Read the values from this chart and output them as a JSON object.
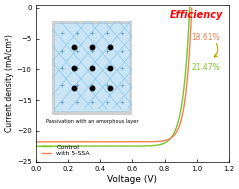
{
  "title": "Efficiency",
  "xlabel": "Voltage (V)",
  "ylabel": "Current density (mA/cm²)",
  "xlim": [
    0.0,
    1.2
  ],
  "ylim": [
    -25,
    0.5
  ],
  "yticks": [
    0,
    -5,
    -10,
    -15,
    -20,
    -25
  ],
  "xticks": [
    0.0,
    0.2,
    0.4,
    0.6,
    0.8,
    1.0,
    1.2
  ],
  "legend_control": "Control",
  "legend_5ssa": "with 5-SSA",
  "eff_control": "18.61%",
  "eff_5ssa": "21.47%",
  "color_control": "#7dc42a",
  "color_5ssa": "#f08050",
  "color_eff_title": "#ff0000",
  "color_eff_control": "#f08050",
  "color_eff_5ssa": "#7dc42a",
  "inset_text": "Passivation with an amorphous layer",
  "background_color": "#ffffff",
  "inset_bg": "#c8e4f5",
  "inset_outer_bg": "#d8d8d8",
  "grid_color": "#80c0e8",
  "arrow_color": "#c8a000"
}
